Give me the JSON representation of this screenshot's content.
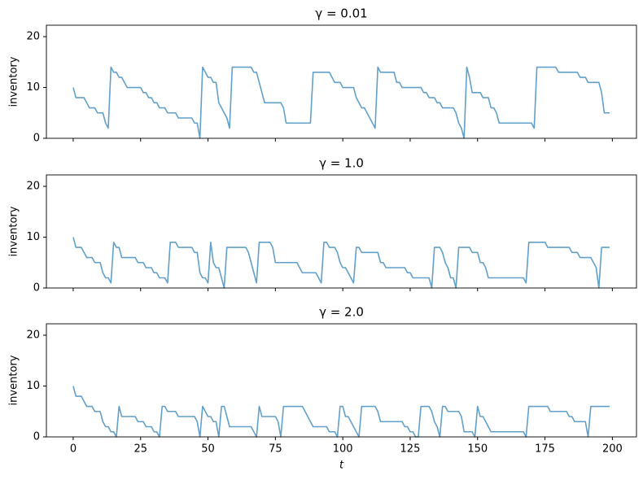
{
  "chart_data": [
    {
      "type": "line",
      "title": "γ = 0.01",
      "ylabel": "inventory",
      "color": "#62a0ca",
      "xlim": [
        -9.95,
        208.95
      ],
      "ylim": [
        0,
        22.25
      ],
      "xticks": [
        0,
        25,
        50,
        75,
        100,
        125,
        150,
        175,
        200
      ],
      "yticks": [
        0,
        10,
        20
      ],
      "show_xticklabels": false,
      "x": [
        0,
        1,
        2,
        3,
        4,
        5,
        6,
        7,
        8,
        9,
        10,
        11,
        12,
        13,
        14,
        15,
        16,
        17,
        18,
        19,
        20,
        21,
        22,
        23,
        24,
        25,
        26,
        27,
        28,
        29,
        30,
        31,
        32,
        33,
        34,
        35,
        36,
        37,
        38,
        39,
        40,
        41,
        42,
        43,
        44,
        45,
        46,
        47,
        48,
        49,
        50,
        51,
        52,
        53,
        54,
        55,
        56,
        57,
        58,
        59,
        60,
        61,
        62,
        63,
        64,
        65,
        66,
        67,
        68,
        69,
        70,
        71,
        72,
        73,
        74,
        75,
        76,
        77,
        78,
        79,
        80,
        81,
        82,
        83,
        84,
        85,
        86,
        87,
        88,
        89,
        90,
        91,
        92,
        93,
        94,
        95,
        96,
        97,
        98,
        99,
        100,
        101,
        102,
        103,
        104,
        105,
        106,
        107,
        108,
        109,
        110,
        111,
        112,
        113,
        114,
        115,
        116,
        117,
        118,
        119,
        120,
        121,
        122,
        123,
        124,
        125,
        126,
        127,
        128,
        129,
        130,
        131,
        132,
        133,
        134,
        135,
        136,
        137,
        138,
        139,
        140,
        141,
        142,
        143,
        144,
        145,
        146,
        147,
        148,
        149,
        150,
        151,
        152,
        153,
        154,
        155,
        156,
        157,
        158,
        159,
        160,
        161,
        162,
        163,
        164,
        165,
        166,
        167,
        168,
        169,
        170,
        171,
        172,
        173,
        174,
        175,
        176,
        177,
        178,
        179,
        180,
        181,
        182,
        183,
        184,
        185,
        186,
        187,
        188,
        189,
        190,
        191,
        192,
        193,
        194,
        195,
        196,
        197,
        198,
        199
      ],
      "values": [
        10,
        8,
        8,
        8,
        8,
        7,
        6,
        6,
        6,
        5,
        5,
        5,
        3,
        2,
        14,
        13,
        13,
        12,
        12,
        11,
        10,
        10,
        10,
        10,
        10,
        10,
        9,
        9,
        8,
        8,
        7,
        7,
        6,
        6,
        6,
        5,
        5,
        5,
        5,
        4,
        4,
        4,
        4,
        4,
        4,
        3,
        3,
        0,
        14,
        13,
        12,
        12,
        11,
        11,
        7,
        6,
        5,
        4,
        2,
        14,
        14,
        14,
        14,
        14,
        14,
        14,
        14,
        13,
        13,
        11,
        9,
        7,
        7,
        7,
        7,
        7,
        7,
        7,
        6,
        3,
        3,
        3,
        3,
        3,
        3,
        3,
        3,
        3,
        3,
        13,
        13,
        13,
        13,
        13,
        13,
        13,
        12,
        11,
        11,
        11,
        10,
        10,
        10,
        10,
        10,
        8,
        7,
        6,
        6,
        5,
        4,
        3,
        2,
        14,
        13,
        13,
        13,
        13,
        13,
        13,
        11,
        11,
        10,
        10,
        10,
        10,
        10,
        10,
        10,
        10,
        9,
        9,
        8,
        8,
        8,
        7,
        7,
        6,
        6,
        6,
        6,
        6,
        5,
        3,
        2,
        0,
        14,
        12,
        9,
        9,
        9,
        9,
        8,
        8,
        8,
        6,
        6,
        5,
        3,
        3,
        3,
        3,
        3,
        3,
        3,
        3,
        3,
        3,
        3,
        3,
        3,
        2,
        14,
        14,
        14,
        14,
        14,
        14,
        14,
        14,
        13,
        13,
        13,
        13,
        13,
        13,
        13,
        13,
        12,
        12,
        12,
        11,
        11,
        11,
        11,
        11,
        9,
        5,
        5,
        5
      ]
    },
    {
      "type": "line",
      "title": "γ = 1.0",
      "ylabel": "inventory",
      "color": "#62a0ca",
      "xlim": [
        -9.95,
        208.95
      ],
      "ylim": [
        0,
        22.25
      ],
      "xticks": [
        0,
        25,
        50,
        75,
        100,
        125,
        150,
        175,
        200
      ],
      "yticks": [
        0,
        10,
        20
      ],
      "show_xticklabels": false,
      "x": [
        0,
        1,
        2,
        3,
        4,
        5,
        6,
        7,
        8,
        9,
        10,
        11,
        12,
        13,
        14,
        15,
        16,
        17,
        18,
        19,
        20,
        21,
        22,
        23,
        24,
        25,
        26,
        27,
        28,
        29,
        30,
        31,
        32,
        33,
        34,
        35,
        36,
        37,
        38,
        39,
        40,
        41,
        42,
        43,
        44,
        45,
        46,
        47,
        48,
        49,
        50,
        51,
        52,
        53,
        54,
        55,
        56,
        57,
        58,
        59,
        60,
        61,
        62,
        63,
        64,
        65,
        66,
        67,
        68,
        69,
        70,
        71,
        72,
        73,
        74,
        75,
        76,
        77,
        78,
        79,
        80,
        81,
        82,
        83,
        84,
        85,
        86,
        87,
        88,
        89,
        90,
        91,
        92,
        93,
        94,
        95,
        96,
        97,
        98,
        99,
        100,
        101,
        102,
        103,
        104,
        105,
        106,
        107,
        108,
        109,
        110,
        111,
        112,
        113,
        114,
        115,
        116,
        117,
        118,
        119,
        120,
        121,
        122,
        123,
        124,
        125,
        126,
        127,
        128,
        129,
        130,
        131,
        132,
        133,
        134,
        135,
        136,
        137,
        138,
        139,
        140,
        141,
        142,
        143,
        144,
        145,
        146,
        147,
        148,
        149,
        150,
        151,
        152,
        153,
        154,
        155,
        156,
        157,
        158,
        159,
        160,
        161,
        162,
        163,
        164,
        165,
        166,
        167,
        168,
        169,
        170,
        171,
        172,
        173,
        174,
        175,
        176,
        177,
        178,
        179,
        180,
        181,
        182,
        183,
        184,
        185,
        186,
        187,
        188,
        189,
        190,
        191,
        192,
        193,
        194,
        195,
        196,
        197,
        198,
        199
      ],
      "values": [
        10,
        8,
        8,
        8,
        7,
        6,
        6,
        6,
        5,
        5,
        5,
        3,
        2,
        2,
        1,
        9,
        8,
        8,
        6,
        6,
        6,
        6,
        6,
        6,
        5,
        5,
        5,
        4,
        4,
        4,
        3,
        3,
        2,
        2,
        2,
        1,
        9,
        9,
        9,
        8,
        8,
        8,
        8,
        8,
        8,
        7,
        7,
        3,
        2,
        2,
        1,
        9,
        5,
        4,
        4,
        2,
        0,
        8,
        8,
        8,
        8,
        8,
        8,
        8,
        8,
        7,
        5,
        3,
        1,
        9,
        9,
        9,
        9,
        9,
        8,
        5,
        5,
        5,
        5,
        5,
        5,
        5,
        5,
        5,
        4,
        3,
        3,
        3,
        3,
        3,
        3,
        2,
        1,
        9,
        9,
        8,
        8,
        8,
        7,
        5,
        4,
        4,
        3,
        2,
        1,
        8,
        8,
        7,
        7,
        7,
        7,
        7,
        7,
        7,
        5,
        5,
        4,
        4,
        4,
        4,
        4,
        4,
        4,
        4,
        3,
        3,
        2,
        2,
        2,
        2,
        2,
        2,
        2,
        0,
        8,
        8,
        8,
        7,
        5,
        4,
        2,
        2,
        0,
        8,
        8,
        8,
        8,
        8,
        7,
        7,
        7,
        5,
        5,
        4,
        2,
        2,
        2,
        2,
        2,
        2,
        2,
        2,
        2,
        2,
        2,
        2,
        2,
        2,
        1,
        9,
        9,
        9,
        9,
        9,
        9,
        9,
        8,
        8,
        8,
        8,
        8,
        8,
        8,
        8,
        8,
        7,
        7,
        7,
        6,
        6,
        6,
        6,
        6,
        5,
        4,
        0,
        8,
        8,
        8,
        8
      ]
    },
    {
      "type": "line",
      "title": "γ = 2.0",
      "ylabel": "inventory",
      "xlabel": "t",
      "color": "#62a0ca",
      "xlim": [
        -9.95,
        208.95
      ],
      "ylim": [
        0,
        22.25
      ],
      "xticks": [
        0,
        25,
        50,
        75,
        100,
        125,
        150,
        175,
        200
      ],
      "yticks": [
        0,
        10,
        20
      ],
      "show_xticklabels": true,
      "x": [
        0,
        1,
        2,
        3,
        4,
        5,
        6,
        7,
        8,
        9,
        10,
        11,
        12,
        13,
        14,
        15,
        16,
        17,
        18,
        19,
        20,
        21,
        22,
        23,
        24,
        25,
        26,
        27,
        28,
        29,
        30,
        31,
        32,
        33,
        34,
        35,
        36,
        37,
        38,
        39,
        40,
        41,
        42,
        43,
        44,
        45,
        46,
        47,
        48,
        49,
        50,
        51,
        52,
        53,
        54,
        55,
        56,
        57,
        58,
        59,
        60,
        61,
        62,
        63,
        64,
        65,
        66,
        67,
        68,
        69,
        70,
        71,
        72,
        73,
        74,
        75,
        76,
        77,
        78,
        79,
        80,
        81,
        82,
        83,
        84,
        85,
        86,
        87,
        88,
        89,
        90,
        91,
        92,
        93,
        94,
        95,
        96,
        97,
        98,
        99,
        100,
        101,
        102,
        103,
        104,
        105,
        106,
        107,
        108,
        109,
        110,
        111,
        112,
        113,
        114,
        115,
        116,
        117,
        118,
        119,
        120,
        121,
        122,
        123,
        124,
        125,
        126,
        127,
        128,
        129,
        130,
        131,
        132,
        133,
        134,
        135,
        136,
        137,
        138,
        139,
        140,
        141,
        142,
        143,
        144,
        145,
        146,
        147,
        148,
        149,
        150,
        151,
        152,
        153,
        154,
        155,
        156,
        157,
        158,
        159,
        160,
        161,
        162,
        163,
        164,
        165,
        166,
        167,
        168,
        169,
        170,
        171,
        172,
        173,
        174,
        175,
        176,
        177,
        178,
        179,
        180,
        181,
        182,
        183,
        184,
        185,
        186,
        187,
        188,
        189,
        190,
        191,
        192,
        193,
        194,
        195,
        196,
        197,
        198,
        199
      ],
      "values": [
        10,
        8,
        8,
        8,
        7,
        6,
        6,
        6,
        5,
        5,
        5,
        3,
        2,
        2,
        1,
        1,
        0,
        6,
        4,
        4,
        4,
        4,
        4,
        4,
        3,
        3,
        3,
        2,
        2,
        2,
        1,
        1,
        0,
        6,
        6,
        5,
        5,
        5,
        5,
        4,
        4,
        4,
        4,
        4,
        4,
        4,
        3,
        0,
        6,
        5,
        4,
        4,
        3,
        3,
        0,
        6,
        6,
        4,
        2,
        2,
        2,
        2,
        2,
        2,
        2,
        2,
        2,
        1,
        0,
        6,
        4,
        4,
        4,
        4,
        4,
        4,
        3,
        0,
        6,
        6,
        6,
        6,
        6,
        6,
        6,
        6,
        5,
        4,
        3,
        2,
        2,
        2,
        2,
        2,
        2,
        1,
        1,
        1,
        0,
        6,
        6,
        4,
        4,
        3,
        2,
        1,
        0,
        6,
        6,
        6,
        6,
        6,
        6,
        5,
        3,
        3,
        3,
        3,
        3,
        3,
        3,
        3,
        3,
        2,
        2,
        1,
        1,
        0,
        0,
        6,
        6,
        6,
        6,
        5,
        3,
        2,
        0,
        6,
        6,
        5,
        5,
        5,
        5,
        5,
        4,
        1,
        1,
        1,
        1,
        0,
        6,
        4,
        4,
        3,
        2,
        1,
        1,
        1,
        1,
        1,
        1,
        1,
        1,
        1,
        1,
        1,
        1,
        1,
        0,
        6,
        6,
        6,
        6,
        6,
        6,
        6,
        6,
        5,
        5,
        5,
        5,
        5,
        5,
        5,
        4,
        4,
        3,
        3,
        3,
        3,
        3,
        0,
        6,
        6,
        6,
        6,
        6,
        6,
        6,
        6
      ]
    }
  ]
}
